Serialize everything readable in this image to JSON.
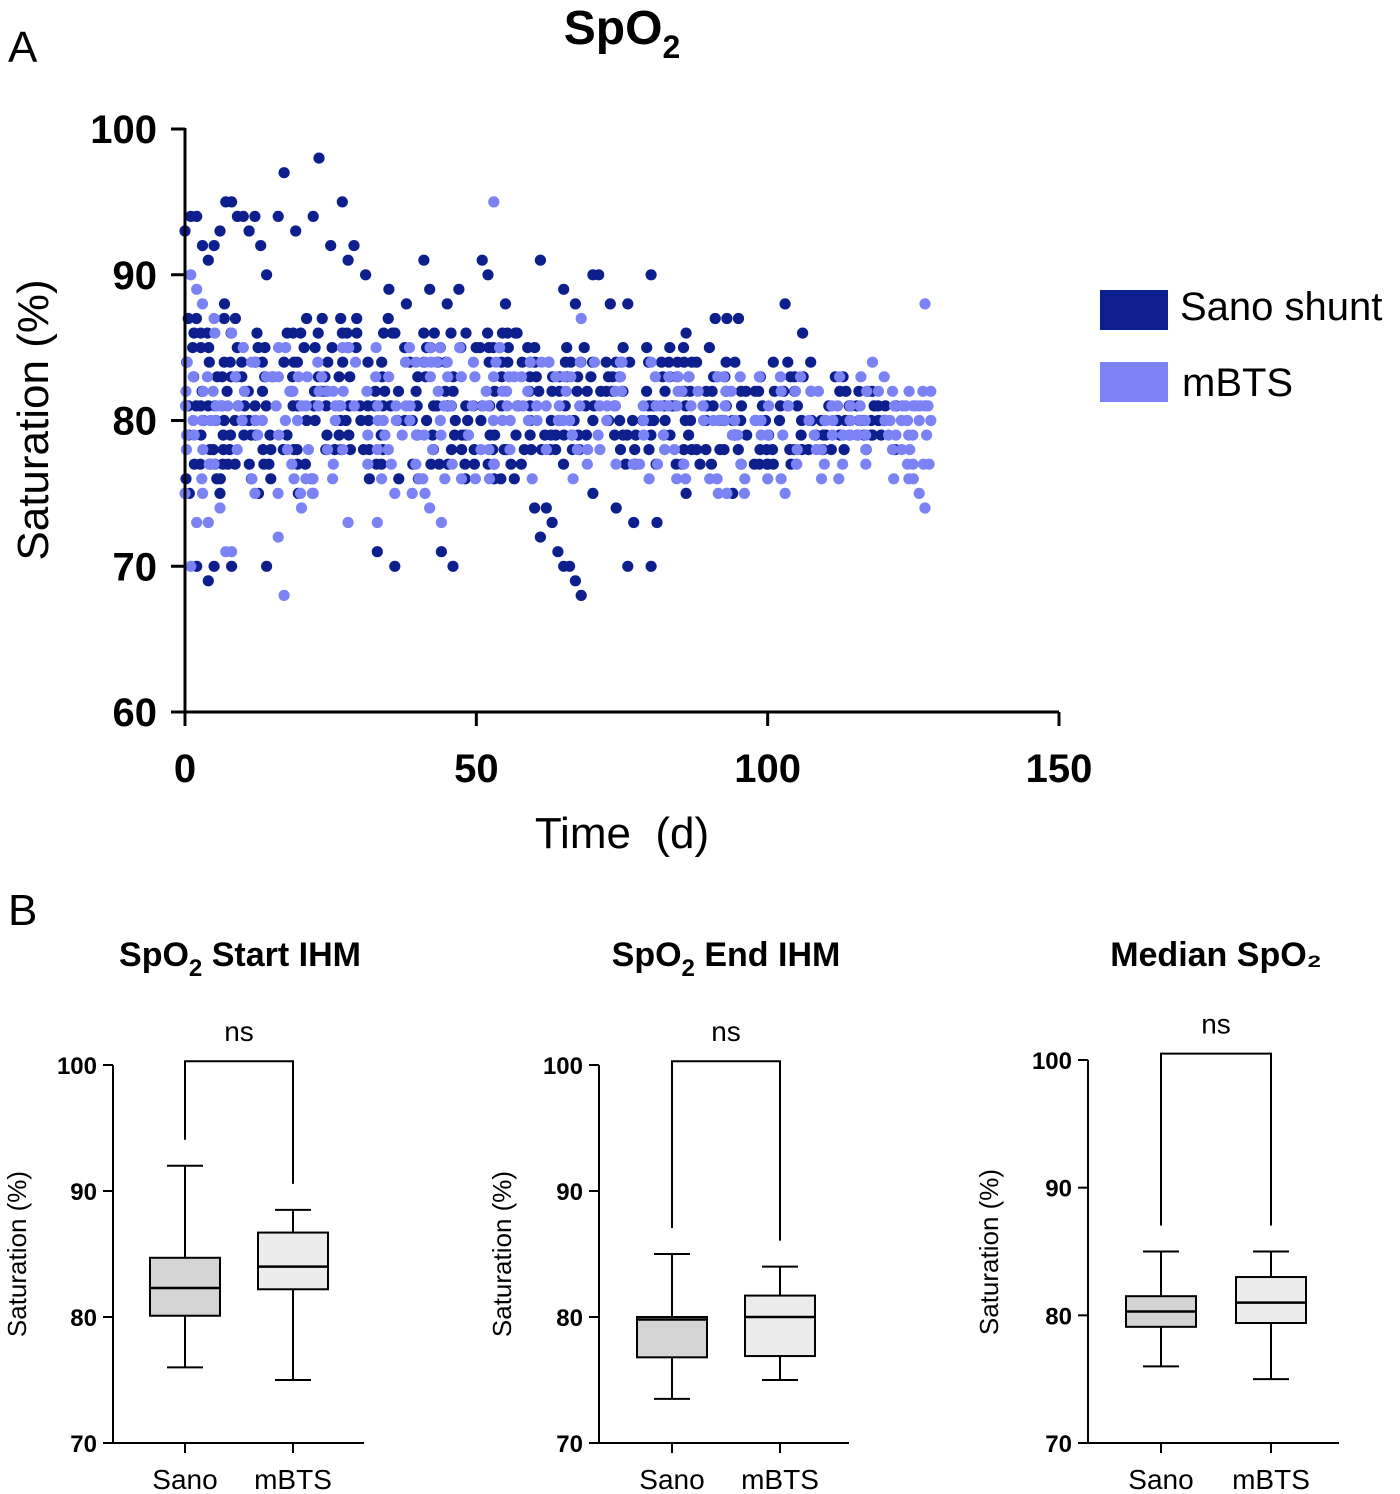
{
  "panels": {
    "a_letter": "A",
    "b_letter": "B"
  },
  "colors": {
    "sano": "#0c1f8c",
    "mbts": "#7b83f4",
    "box_sano": "#d4d4d4",
    "box_mbts": "#ececec",
    "axis": "#000000"
  },
  "chart_data": [
    {
      "type": "scatter",
      "title_main": "SpO",
      "title_sub": "2",
      "xlabel": "Time  (d)",
      "ylabel": "Saturation (%)",
      "xlim": [
        0,
        150
      ],
      "ylim": [
        60,
        100
      ],
      "xticks": [
        0,
        50,
        100,
        150
      ],
      "yticks": [
        60,
        70,
        80,
        90,
        100
      ],
      "xtick_labels": [
        "0",
        "50",
        "100",
        "150"
      ],
      "ytick_labels": [
        "60",
        "70",
        "80",
        "90",
        "100"
      ],
      "legend_position": "right",
      "legend": [
        {
          "name": "Sano shunt",
          "color": "#0c1f8c"
        },
        {
          "name": "mBTS",
          "color": "#7b83f4"
        }
      ],
      "series": [
        {
          "name": "Sano shunt",
          "summary": {
            "x_range": [
              0,
              122
            ],
            "main_y_range": [
              75,
              88
            ]
          },
          "points": [
            [
              0,
              93
            ],
            [
              1,
              94
            ],
            [
              2,
              94
            ],
            [
              3,
              92
            ],
            [
              4,
              91
            ],
            [
              5,
              92
            ],
            [
              6,
              93
            ],
            [
              7,
              95
            ],
            [
              8,
              95
            ],
            [
              9,
              94
            ],
            [
              10,
              94
            ],
            [
              11,
              93
            ],
            [
              12,
              94
            ],
            [
              13,
              92
            ],
            [
              14,
              90
            ],
            [
              16,
              94
            ],
            [
              17,
              97
            ],
            [
              19,
              93
            ],
            [
              22,
              94
            ],
            [
              23,
              98
            ],
            [
              25,
              92
            ],
            [
              27,
              95
            ],
            [
              28,
              91
            ],
            [
              29,
              92
            ],
            [
              31,
              90
            ],
            [
              35,
              89
            ],
            [
              38,
              88
            ],
            [
              41,
              91
            ],
            [
              42,
              89
            ],
            [
              45,
              88
            ],
            [
              47,
              89
            ],
            [
              51,
              91
            ],
            [
              52,
              90
            ],
            [
              55,
              88
            ],
            [
              57,
              86
            ],
            [
              61,
              91
            ],
            [
              65,
              89
            ],
            [
              67,
              88
            ],
            [
              70,
              90
            ],
            [
              71,
              90
            ],
            [
              73,
              88
            ],
            [
              76,
              88
            ],
            [
              80,
              90
            ],
            [
              86,
              86
            ],
            [
              90,
              85
            ],
            [
              91,
              87
            ],
            [
              93,
              87
            ],
            [
              95,
              87
            ],
            [
              103,
              88
            ],
            [
              106,
              86
            ],
            [
              2,
              70
            ],
            [
              4,
              69
            ],
            [
              5,
              70
            ],
            [
              8,
              70
            ],
            [
              14,
              70
            ],
            [
              33,
              71
            ],
            [
              36,
              70
            ],
            [
              44,
              71
            ],
            [
              46,
              70
            ],
            [
              61,
              72
            ],
            [
              64,
              71
            ],
            [
              65,
              70
            ],
            [
              66,
              70
            ],
            [
              67,
              69
            ],
            [
              68,
              68
            ],
            [
              76,
              70
            ],
            [
              80,
              70
            ],
            [
              60,
              74
            ],
            [
              62,
              74
            ],
            [
              63,
              73
            ],
            [
              70,
              75
            ],
            [
              74,
              74
            ],
            [
              77,
              73
            ],
            [
              81,
              73
            ],
            [
              86,
              75
            ],
            [
              94,
              75
            ],
            [
              100,
              77
            ],
            [
              104,
              77
            ],
            [
              107,
              78
            ],
            [
              110,
              79
            ],
            [
              112,
              80
            ],
            [
              114,
              81
            ],
            [
              116,
              80
            ],
            [
              118,
              79
            ],
            [
              120,
              80
            ],
            [
              122,
              81
            ]
          ]
        },
        {
          "name": "mBTS",
          "summary": {
            "x_range": [
              0,
              128
            ],
            "main_y_range": [
              74,
              86
            ]
          },
          "points": [
            [
              0,
              75
            ],
            [
              1,
              70
            ],
            [
              2,
              73
            ],
            [
              4,
              73
            ],
            [
              6,
              74
            ],
            [
              7,
              71
            ],
            [
              8,
              71
            ],
            [
              12,
              75
            ],
            [
              16,
              72
            ],
            [
              17,
              68
            ],
            [
              20,
              74
            ],
            [
              22,
              75
            ],
            [
              28,
              73
            ],
            [
              33,
              73
            ],
            [
              36,
              75
            ],
            [
              39,
              75
            ],
            [
              42,
              74
            ],
            [
              44,
              73
            ],
            [
              53,
              95
            ],
            [
              54,
              85
            ],
            [
              57,
              81
            ],
            [
              62,
              78
            ],
            [
              66,
              80
            ],
            [
              68,
              87
            ],
            [
              75,
              84
            ],
            [
              78,
              77
            ],
            [
              84,
              78
            ],
            [
              89,
              80
            ],
            [
              93,
              75
            ],
            [
              96,
              75
            ],
            [
              100,
              76
            ],
            [
              103,
              75
            ],
            [
              105,
              77
            ],
            [
              108,
              79
            ],
            [
              110,
              80
            ],
            [
              112,
              81
            ],
            [
              114,
              79
            ],
            [
              116,
              83
            ],
            [
              117,
              82
            ],
            [
              118,
              84
            ],
            [
              119,
              82
            ],
            [
              120,
              83
            ],
            [
              121,
              80
            ],
            [
              122,
              79
            ],
            [
              123,
              78
            ],
            [
              124,
              77
            ],
            [
              124,
              80
            ],
            [
              125,
              76
            ],
            [
              125,
              81
            ],
            [
              126,
              75
            ],
            [
              126,
              80
            ],
            [
              127,
              74
            ],
            [
              127,
              81
            ],
            [
              128,
              82
            ],
            [
              128,
              80
            ],
            [
              127,
              88
            ],
            [
              1,
              90
            ],
            [
              2,
              89
            ],
            [
              3,
              88
            ],
            [
              5,
              87
            ],
            [
              8,
              86
            ],
            [
              10,
              85
            ],
            [
              12,
              84
            ],
            [
              15,
              83
            ],
            [
              18,
              82
            ],
            [
              20,
              81
            ]
          ]
        }
      ]
    },
    {
      "type": "box",
      "title": "SpO",
      "title_sub": "2",
      "title_rest": " Start IHM",
      "ylabel": "Saturation (%)",
      "ylim": [
        70,
        100
      ],
      "yticks": [
        70,
        80,
        90,
        100
      ],
      "ytick_labels": [
        "70",
        "80",
        "90",
        "100"
      ],
      "categories": [
        "Sano",
        "mBTS"
      ],
      "boxes": [
        {
          "name": "Sano",
          "min": 76,
          "q1": 80.1,
          "median": 82.3,
          "q3": 84.7,
          "max": 92
        },
        {
          "name": "mBTS",
          "min": 75,
          "q1": 82.2,
          "median": 84,
          "q3": 86.7,
          "max": 88.5
        }
      ],
      "significance": {
        "label": "ns",
        "y": 100.3
      }
    },
    {
      "type": "box",
      "title": "SpO",
      "title_sub": "2",
      "title_rest": " End IHM",
      "ylabel": "Saturation (%)",
      "ylim": [
        70,
        100
      ],
      "yticks": [
        70,
        80,
        90,
        100
      ],
      "ytick_labels": [
        "70",
        "80",
        "90",
        "100"
      ],
      "categories": [
        "Sano",
        "mBTS"
      ],
      "boxes": [
        {
          "name": "Sano",
          "min": 73.5,
          "q1": 76.8,
          "median": 79.8,
          "q3": 80,
          "max": 85
        },
        {
          "name": "mBTS",
          "min": 75,
          "q1": 76.9,
          "median": 80,
          "q3": 81.7,
          "max": 84
        }
      ],
      "significance": {
        "label": "ns",
        "y": 100.3
      }
    },
    {
      "type": "box",
      "title": "Median SpO₂",
      "title_sub": "",
      "title_rest": "",
      "ylabel": "Saturation (%)",
      "ylim": [
        70,
        100
      ],
      "yticks": [
        70,
        80,
        90,
        100
      ],
      "ytick_labels": [
        "70",
        "80",
        "90",
        "100"
      ],
      "categories": [
        "Sano",
        "mBTS"
      ],
      "boxes": [
        {
          "name": "Sano",
          "min": 76,
          "q1": 79.1,
          "median": 80.3,
          "q3": 81.5,
          "max": 85
        },
        {
          "name": "mBTS",
          "min": 75,
          "q1": 79.4,
          "median": 81,
          "q3": 83,
          "max": 85
        }
      ],
      "significance": {
        "label": "ns",
        "y": 100.5
      }
    }
  ]
}
